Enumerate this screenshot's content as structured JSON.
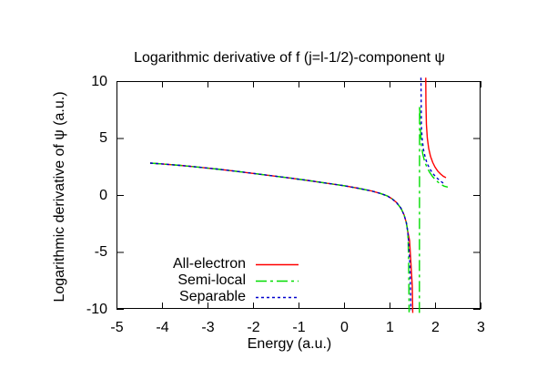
{
  "window": {
    "background": "#ffffff",
    "text_color": "#000000"
  },
  "chart_data": {
    "type": "line",
    "title": "Logarithmic derivative of f (j=l-1/2)-component ψ",
    "xlabel": "Energy (a.u.)",
    "ylabel": "Logarithmic derivative of ψ (a.u.)",
    "xlim": [
      -5,
      3
    ],
    "ylim": [
      -10,
      10
    ],
    "xticks": [
      -5,
      -4,
      -3,
      -2,
      -1,
      0,
      1,
      2,
      3
    ],
    "yticks": [
      10,
      5,
      0,
      -5,
      -10
    ],
    "grid": false,
    "legend_position": "inside-bottom-left",
    "axis_color": "#000000",
    "series": [
      {
        "name": "All-electron",
        "color": "#ff0000",
        "dash": null,
        "segments": [
          [
            [
              -4.26,
              2.8
            ],
            [
              -4.0,
              2.73
            ],
            [
              -3.6,
              2.6
            ],
            [
              -3.2,
              2.45
            ],
            [
              -2.8,
              2.28
            ],
            [
              -2.4,
              2.1
            ],
            [
              -2.0,
              1.9
            ],
            [
              -1.6,
              1.7
            ],
            [
              -1.2,
              1.5
            ],
            [
              -0.8,
              1.28
            ],
            [
              -0.4,
              1.05
            ],
            [
              0.0,
              0.82
            ],
            [
              0.3,
              0.6
            ],
            [
              0.6,
              0.36
            ],
            [
              0.8,
              0.14
            ],
            [
              0.95,
              -0.08
            ],
            [
              1.05,
              -0.32
            ],
            [
              1.15,
              -0.65
            ],
            [
              1.25,
              -1.15
            ],
            [
              1.32,
              -1.75
            ],
            [
              1.37,
              -2.45
            ],
            [
              1.4,
              -3.2
            ],
            [
              1.44,
              -4.0
            ],
            [
              1.47,
              -6.0
            ],
            [
              1.5,
              -8.0
            ],
            [
              1.51,
              -10.35
            ]
          ],
          [
            [
              1.795,
              10.3
            ],
            [
              1.8,
              8.0
            ],
            [
              1.81,
              6.2
            ],
            [
              1.83,
              5.0
            ],
            [
              1.86,
              4.1
            ],
            [
              1.9,
              3.4
            ],
            [
              1.95,
              2.85
            ],
            [
              2.0,
              2.45
            ],
            [
              2.06,
              2.1
            ],
            [
              2.12,
              1.85
            ],
            [
              2.18,
              1.65
            ],
            [
              2.24,
              1.52
            ]
          ]
        ]
      },
      {
        "name": "Semi-local",
        "color": "#00dd00",
        "dash": [
          12,
          4,
          3,
          4
        ],
        "segments": [
          [
            [
              -4.26,
              2.8
            ],
            [
              -4.0,
              2.73
            ],
            [
              -3.6,
              2.6
            ],
            [
              -3.2,
              2.45
            ],
            [
              -2.8,
              2.28
            ],
            [
              -2.4,
              2.1
            ],
            [
              -2.0,
              1.9
            ],
            [
              -1.6,
              1.7
            ],
            [
              -1.2,
              1.5
            ],
            [
              -0.8,
              1.28
            ],
            [
              -0.4,
              1.05
            ],
            [
              0.0,
              0.82
            ],
            [
              0.3,
              0.6
            ],
            [
              0.6,
              0.36
            ],
            [
              0.8,
              0.14
            ],
            [
              0.95,
              -0.08
            ],
            [
              1.05,
              -0.32
            ],
            [
              1.15,
              -0.65
            ],
            [
              1.25,
              -1.15
            ],
            [
              1.32,
              -1.75
            ],
            [
              1.37,
              -2.45
            ],
            [
              1.4,
              -3.2
            ],
            [
              1.41,
              -4.2
            ],
            [
              1.42,
              -6.0
            ],
            [
              1.425,
              -8.5
            ],
            [
              1.43,
              -10.3
            ]
          ],
          [
            [
              1.655,
              -10.35
            ],
            [
              1.66,
              7.85
            ],
            [
              1.68,
              5.6
            ],
            [
              1.7,
              4.4
            ],
            [
              1.73,
              3.6
            ],
            [
              1.77,
              2.95
            ],
            [
              1.82,
              2.45
            ],
            [
              1.88,
              2.0
            ],
            [
              1.95,
              1.6
            ],
            [
              2.03,
              1.25
            ],
            [
              2.12,
              0.95
            ],
            [
              2.2,
              0.78
            ],
            [
              2.28,
              0.7
            ]
          ]
        ]
      },
      {
        "name": "Separable",
        "color": "#0000cc",
        "dash": [
          3,
          3
        ],
        "segments": [
          [
            [
              -4.26,
              2.8
            ],
            [
              -4.0,
              2.73
            ],
            [
              -3.6,
              2.6
            ],
            [
              -3.2,
              2.45
            ],
            [
              -2.8,
              2.28
            ],
            [
              -2.4,
              2.1
            ],
            [
              -2.0,
              1.9
            ],
            [
              -1.6,
              1.7
            ],
            [
              -1.2,
              1.5
            ],
            [
              -0.8,
              1.28
            ],
            [
              -0.4,
              1.05
            ],
            [
              0.0,
              0.82
            ],
            [
              0.3,
              0.6
            ],
            [
              0.6,
              0.36
            ],
            [
              0.8,
              0.14
            ],
            [
              0.95,
              -0.08
            ],
            [
              1.05,
              -0.32
            ],
            [
              1.15,
              -0.65
            ],
            [
              1.25,
              -1.15
            ],
            [
              1.32,
              -1.75
            ],
            [
              1.37,
              -2.45
            ],
            [
              1.4,
              -3.2
            ],
            [
              1.42,
              -4.2
            ],
            [
              1.445,
              -6.0
            ],
            [
              1.46,
              -8.0
            ],
            [
              1.47,
              -10.1
            ]
          ],
          [
            [
              1.69,
              10.3
            ],
            [
              1.695,
              8.0
            ],
            [
              1.7,
              6.0
            ],
            [
              1.72,
              4.8
            ],
            [
              1.75,
              3.9
            ],
            [
              1.79,
              3.2
            ],
            [
              1.84,
              2.65
            ],
            [
              1.9,
              2.2
            ],
            [
              1.97,
              1.8
            ],
            [
              2.04,
              1.5
            ],
            [
              2.11,
              1.25
            ],
            [
              2.18,
              1.05
            ]
          ]
        ]
      }
    ]
  }
}
